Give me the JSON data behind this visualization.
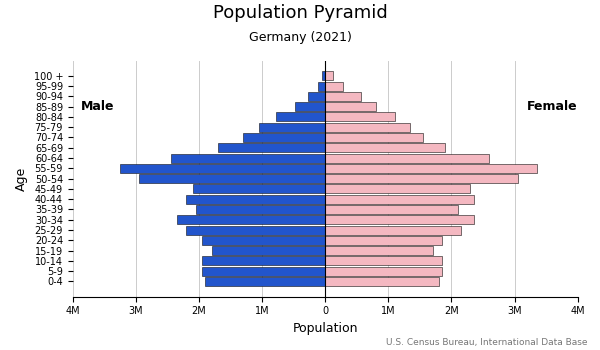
{
  "title": "Population Pyramid",
  "subtitle": "Germany (2021)",
  "xlabel": "Population",
  "ylabel": "Age",
  "source": "U.S. Census Bureau, International Data Base",
  "age_groups": [
    "0-4",
    "5-9",
    "10-14",
    "15-19",
    "20-24",
    "25-29",
    "30-34",
    "35-39",
    "40-44",
    "45-49",
    "50-54",
    "55-59",
    "60-64",
    "65-69",
    "70-74",
    "75-79",
    "80-84",
    "85-89",
    "90-94",
    "95-99",
    "100 +"
  ],
  "male": [
    1900000,
    1950000,
    1950000,
    1800000,
    1950000,
    2200000,
    2350000,
    2050000,
    2200000,
    2100000,
    2950000,
    3250000,
    2450000,
    1700000,
    1300000,
    1050000,
    780000,
    480000,
    280000,
    120000,
    50000
  ],
  "female": [
    1800000,
    1850000,
    1850000,
    1700000,
    1850000,
    2150000,
    2350000,
    2100000,
    2350000,
    2300000,
    3050000,
    3350000,
    2600000,
    1900000,
    1550000,
    1350000,
    1100000,
    800000,
    560000,
    280000,
    130000
  ],
  "male_color": "#2255cc",
  "female_color": "#f4b8c1",
  "bar_edge_color": "#111111",
  "bar_linewidth": 0.4,
  "xlim": 4000000,
  "tick_labels": [
    "4M",
    "3M",
    "2M",
    "1M",
    "0",
    "1M",
    "2M",
    "3M",
    "4M"
  ],
  "grid_color": "#cccccc",
  "background_color": "#ffffff",
  "title_fontsize": 13,
  "subtitle_fontsize": 9,
  "label_fontsize": 9,
  "tick_fontsize": 7,
  "source_fontsize": 6.5
}
